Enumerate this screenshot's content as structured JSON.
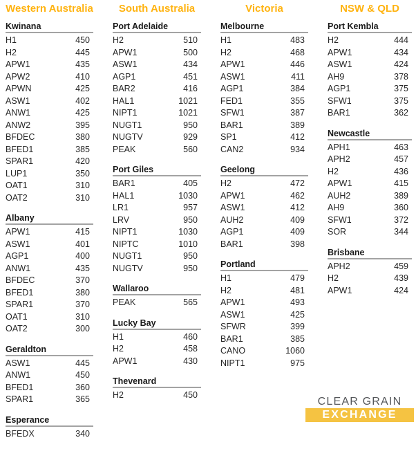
{
  "colors": {
    "region_header": "#FFB310",
    "port_underline": "#A3A3A3",
    "text": "#262626",
    "logo_gray": "#55575A",
    "logo_gold": "#F5C342",
    "logo_text": "#FFFFFF"
  },
  "logo": {
    "top_text": "CLEAR GRAIN",
    "bottom_text": "EXCHANGE"
  },
  "regions": [
    {
      "name": "Western Australia",
      "ports": [
        {
          "name": "Kwinana",
          "rows": [
            {
              "code": "H1",
              "price": 450
            },
            {
              "code": "H2",
              "price": 445
            },
            {
              "code": "APW1",
              "price": 435
            },
            {
              "code": "APW2",
              "price": 410
            },
            {
              "code": "APWN",
              "price": 425
            },
            {
              "code": "ASW1",
              "price": 402
            },
            {
              "code": "ANW1",
              "price": 425
            },
            {
              "code": "ANW2",
              "price": 395
            },
            {
              "code": "BFDEC",
              "price": 380
            },
            {
              "code": "BFED1",
              "price": 385
            },
            {
              "code": "SPAR1",
              "price": 420
            },
            {
              "code": "LUP1",
              "price": 350
            },
            {
              "code": "OAT1",
              "price": 310
            },
            {
              "code": "OAT2",
              "price": 310
            }
          ]
        },
        {
          "name": "Albany",
          "rows": [
            {
              "code": "APW1",
              "price": 415
            },
            {
              "code": "ASW1",
              "price": 401
            },
            {
              "code": "AGP1",
              "price": 400
            },
            {
              "code": "ANW1",
              "price": 435
            },
            {
              "code": "BFDEC",
              "price": 370
            },
            {
              "code": "BFED1",
              "price": 380
            },
            {
              "code": "SPAR1",
              "price": 370
            },
            {
              "code": "OAT1",
              "price": 310
            },
            {
              "code": "OAT2",
              "price": 300
            }
          ]
        },
        {
          "name": "Geraldton",
          "rows": [
            {
              "code": "ASW1",
              "price": 445
            },
            {
              "code": "ANW1",
              "price": 450
            },
            {
              "code": "BFED1",
              "price": 360
            },
            {
              "code": "SPAR1",
              "price": 365
            }
          ]
        },
        {
          "name": "Esperance",
          "rows": [
            {
              "code": "BFEDX",
              "price": 340
            }
          ]
        }
      ]
    },
    {
      "name": "South Australia",
      "ports": [
        {
          "name": "Port Adelaide",
          "rows": [
            {
              "code": "H2",
              "price": 510
            },
            {
              "code": "APW1",
              "price": 500
            },
            {
              "code": "ASW1",
              "price": 434
            },
            {
              "code": "AGP1",
              "price": 451
            },
            {
              "code": "BAR2",
              "price": 416
            },
            {
              "code": "HAL1",
              "price": 1021
            },
            {
              "code": "NIPT1",
              "price": 1021
            },
            {
              "code": "NUGT1",
              "price": 950
            },
            {
              "code": "NUGTV",
              "price": 929
            },
            {
              "code": "PEAK",
              "price": 560
            }
          ]
        },
        {
          "name": "Port Giles",
          "rows": [
            {
              "code": "BAR1",
              "price": 405
            },
            {
              "code": "HAL1",
              "price": 1030
            },
            {
              "code": "LR1",
              "price": 957
            },
            {
              "code": "LRV",
              "price": 950
            },
            {
              "code": "NIPT1",
              "price": 1030
            },
            {
              "code": "NIPTC",
              "price": 1010
            },
            {
              "code": "NUGT1",
              "price": 950
            },
            {
              "code": "NUGTV",
              "price": 950
            }
          ]
        },
        {
          "name": "Wallaroo",
          "rows": [
            {
              "code": "PEAK",
              "price": 565
            }
          ]
        },
        {
          "name": "Lucky Bay",
          "rows": [
            {
              "code": "H1",
              "price": 460
            },
            {
              "code": "H2",
              "price": 458
            },
            {
              "code": "APW1",
              "price": 430
            }
          ]
        },
        {
          "name": "Thevenard",
          "rows": [
            {
              "code": "H2",
              "price": 450
            }
          ]
        }
      ]
    },
    {
      "name": "Victoria",
      "ports": [
        {
          "name": "Melbourne",
          "rows": [
            {
              "code": "H1",
              "price": 483
            },
            {
              "code": "H2",
              "price": 468
            },
            {
              "code": "APW1",
              "price": 446
            },
            {
              "code": "ASW1",
              "price": 411
            },
            {
              "code": "AGP1",
              "price": 384
            },
            {
              "code": "FED1",
              "price": 355
            },
            {
              "code": "SFW1",
              "price": 387
            },
            {
              "code": "BAR1",
              "price": 389
            },
            {
              "code": "SP1",
              "price": 412
            },
            {
              "code": "CAN2",
              "price": 934
            }
          ]
        },
        {
          "name": "Geelong",
          "rows": [
            {
              "code": "H2",
              "price": 472
            },
            {
              "code": "APW1",
              "price": 462
            },
            {
              "code": "ASW1",
              "price": 412
            },
            {
              "code": "AUH2",
              "price": 409
            },
            {
              "code": "AGP1",
              "price": 409
            },
            {
              "code": "BAR1",
              "price": 398
            }
          ]
        },
        {
          "name": "Portland",
          "rows": [
            {
              "code": "H1",
              "price": 479
            },
            {
              "code": "H2",
              "price": 481
            },
            {
              "code": "APW1",
              "price": 493
            },
            {
              "code": "ASW1",
              "price": 425
            },
            {
              "code": "SFWR",
              "price": 399
            },
            {
              "code": "BAR1",
              "price": 385
            },
            {
              "code": "CANO",
              "price": 1060
            },
            {
              "code": "NIPT1",
              "price": 975
            }
          ]
        }
      ]
    },
    {
      "name": "NSW & QLD",
      "ports": [
        {
          "name": "Port Kembla",
          "rows": [
            {
              "code": "H2",
              "price": 444
            },
            {
              "code": "APW1",
              "price": 434
            },
            {
              "code": "ASW1",
              "price": 424
            },
            {
              "code": "AH9",
              "price": 378
            },
            {
              "code": "AGP1",
              "price": 375
            },
            {
              "code": "SFW1",
              "price": 375
            },
            {
              "code": "BAR1",
              "price": 362
            }
          ]
        },
        {
          "name": "Newcastle",
          "rows": [
            {
              "code": "APH1",
              "price": 463
            },
            {
              "code": "APH2",
              "price": 457
            },
            {
              "code": "H2",
              "price": 436
            },
            {
              "code": "APW1",
              "price": 415
            },
            {
              "code": "AUH2",
              "price": 389
            },
            {
              "code": "AH9",
              "price": 360
            },
            {
              "code": "SFW1",
              "price": 372
            },
            {
              "code": "SOR",
              "price": 344
            }
          ]
        },
        {
          "name": "Brisbane",
          "rows": [
            {
              "code": "APH2",
              "price": 459
            },
            {
              "code": "H2",
              "price": 439
            },
            {
              "code": "APW1",
              "price": 424
            }
          ]
        }
      ]
    }
  ]
}
